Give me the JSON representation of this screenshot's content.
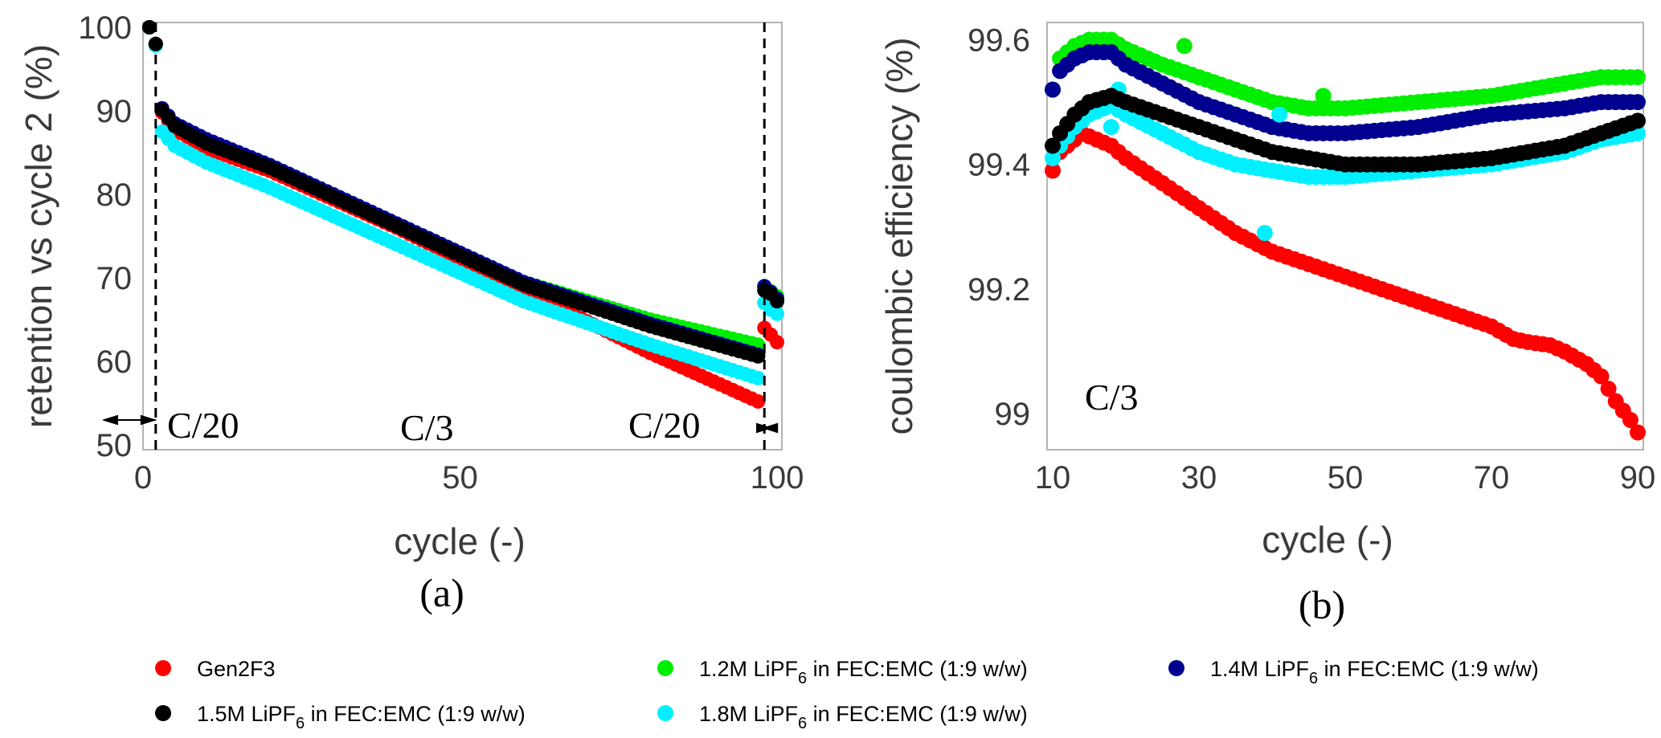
{
  "legend": {
    "series": [
      {
        "name": "Gen2F3",
        "color": "#ff0000"
      },
      {
        "name": "1.2M LiPF",
        "sub": "6",
        "suffix": " in FEC:EMC (1:9 w/w)",
        "color": "#00ee00"
      },
      {
        "name": "1.4M LiPF",
        "sub": "6",
        "suffix": " in FEC:EMC (1:9 w/w)",
        "color": "#000090"
      },
      {
        "name": "1.5M LiPF",
        "sub": "6",
        "suffix": " in FEC:EMC (1:9 w/w)",
        "color": "#000000"
      },
      {
        "name": "1.8M LiPF",
        "sub": "6",
        "suffix": " in FEC:EMC (1:9 w/w)",
        "color": "#00f0ff"
      }
    ]
  },
  "chart_data": [
    {
      "panel": "(a)",
      "type": "scatter",
      "xlabel": "cycle (-)",
      "ylabel": "retention vs cycle 2 (%)",
      "xlim": [
        0,
        100
      ],
      "ylim": [
        50,
        100
      ],
      "xticks": [
        "0",
        "50",
        "100"
      ],
      "yticks": [
        "50",
        "60",
        "70",
        "80",
        "90",
        "100"
      ],
      "phase_lines_x": [
        2,
        98
      ],
      "annotations": [
        "C/20",
        "C/3",
        "C/20"
      ],
      "series": [
        {
          "name": "Gen2F3",
          "anchors": [
            [
              1,
              100
            ],
            [
              2,
              98
            ],
            [
              3,
              89.8
            ],
            [
              5,
              87.8
            ],
            [
              10,
              85.5
            ],
            [
              20,
              82.8
            ],
            [
              40,
              76
            ],
            [
              60,
              68.6
            ],
            [
              80,
              61
            ],
            [
              97,
              55.2
            ]
          ],
          "tail": [
            [
              98,
              64
            ],
            [
              99,
              63.2
            ],
            [
              100,
              62.3
            ]
          ]
        },
        {
          "name": "1.2M LiPF6 in FEC:EMC (1:9 w/w)",
          "anchors": [
            [
              1,
              100
            ],
            [
              2,
              98
            ],
            [
              3,
              90.2
            ],
            [
              5,
              88.5
            ],
            [
              10,
              86.5
            ],
            [
              20,
              83.5
            ],
            [
              40,
              76.5
            ],
            [
              60,
              69.5
            ],
            [
              80,
              65
            ],
            [
              97,
              62
            ]
          ],
          "tail": [
            [
              98,
              69
            ],
            [
              99,
              68.4
            ],
            [
              100,
              67.8
            ]
          ]
        },
        {
          "name": "1.4M LiPF6 in FEC:EMC (1:9 w/w)",
          "anchors": [
            [
              1,
              100
            ],
            [
              2,
              98
            ],
            [
              3,
              90.3
            ],
            [
              5,
              88.5
            ],
            [
              10,
              86.6
            ],
            [
              20,
              83.5
            ],
            [
              40,
              76.5
            ],
            [
              60,
              69.5
            ],
            [
              80,
              64.5
            ],
            [
              97,
              60.8
            ]
          ],
          "tail": [
            [
              98,
              69
            ],
            [
              99,
              68.3
            ],
            [
              100,
              67.5
            ]
          ]
        },
        {
          "name": "1.5M LiPF6 in FEC:EMC (1:9 w/w)",
          "anchors": [
            [
              1,
              100
            ],
            [
              2,
              98
            ],
            [
              3,
              90.1
            ],
            [
              5,
              88.2
            ],
            [
              10,
              86.1
            ],
            [
              20,
              83.2
            ],
            [
              40,
              76.2
            ],
            [
              60,
              69.2
            ],
            [
              80,
              64.2
            ],
            [
              97,
              60.6
            ]
          ],
          "tail": [
            [
              98,
              68.5
            ],
            [
              99,
              68.1
            ],
            [
              100,
              67.2
            ]
          ]
        },
        {
          "name": "1.8M LiPF6 in FEC:EMC (1:9 w/w)",
          "anchors": [
            [
              1,
              100
            ],
            [
              2,
              97.8
            ],
            [
              3,
              87.5
            ],
            [
              5,
              85.8
            ],
            [
              10,
              83.8
            ],
            [
              20,
              80.8
            ],
            [
              40,
              74
            ],
            [
              60,
              67.2
            ],
            [
              80,
              62
            ],
            [
              97,
              58
            ]
          ],
          "tail": [
            [
              98,
              67
            ],
            [
              99,
              66.2
            ],
            [
              100,
              65.7
            ]
          ]
        }
      ]
    },
    {
      "panel": "(b)",
      "type": "scatter",
      "xlabel": "cycle (-)",
      "ylabel": "coulombic efficiency (%)",
      "xlim": [
        10,
        90
      ],
      "ylim": [
        98.95,
        99.62
      ],
      "xticks": [
        "10",
        "30",
        "50",
        "70",
        "90"
      ],
      "yticks": [
        "99",
        "99.2",
        "99.4",
        "99.6"
      ],
      "annotations": [
        "C/3"
      ],
      "series": [
        {
          "name": "Gen2F3",
          "anchors": [
            [
              10,
              99.39
            ],
            [
              11,
              99.42
            ],
            [
              12,
              99.43
            ],
            [
              14,
              99.45
            ],
            [
              16,
              99.44
            ],
            [
              18,
              99.43
            ],
            [
              20,
              99.41
            ],
            [
              25,
              99.37
            ],
            [
              30,
              99.33
            ],
            [
              35,
              99.29
            ],
            [
              40,
              99.26
            ],
            [
              45,
              99.24
            ],
            [
              50,
              99.22
            ],
            [
              55,
              99.2
            ],
            [
              60,
              99.18
            ],
            [
              65,
              99.16
            ],
            [
              70,
              99.14
            ],
            [
              73,
              99.12
            ],
            [
              75,
              99.115
            ],
            [
              78,
              99.11
            ],
            [
              80,
              99.1
            ],
            [
              83,
              99.08
            ],
            [
              85,
              99.06
            ],
            [
              87,
              99.02
            ],
            [
              89,
              98.99
            ],
            [
              90,
              98.97
            ]
          ],
          "outliers": []
        },
        {
          "name": "1.2M LiPF6 in FEC:EMC (1:9 w/w)",
          "anchors": [
            [
              10,
              99.52
            ],
            [
              11,
              99.57
            ],
            [
              13,
              99.59
            ],
            [
              15,
              99.6
            ],
            [
              18,
              99.6
            ],
            [
              20,
              99.585
            ],
            [
              25,
              99.56
            ],
            [
              30,
              99.54
            ],
            [
              35,
              99.52
            ],
            [
              40,
              99.5
            ],
            [
              45,
              99.49
            ],
            [
              50,
              99.49
            ],
            [
              60,
              99.5
            ],
            [
              70,
              99.51
            ],
            [
              80,
              99.53
            ],
            [
              85,
              99.54
            ],
            [
              90,
              99.54
            ]
          ],
          "outliers": [
            [
              28,
              99.59
            ],
            [
              47,
              99.51
            ]
          ]
        },
        {
          "name": "1.4M LiPF6 in FEC:EMC (1:9 w/w)",
          "anchors": [
            [
              10,
              99.52
            ],
            [
              11,
              99.55
            ],
            [
              13,
              99.57
            ],
            [
              15,
              99.58
            ],
            [
              18,
              99.58
            ],
            [
              20,
              99.56
            ],
            [
              25,
              99.53
            ],
            [
              30,
              99.5
            ],
            [
              35,
              99.48
            ],
            [
              40,
              99.46
            ],
            [
              45,
              99.45
            ],
            [
              50,
              99.45
            ],
            [
              60,
              99.46
            ],
            [
              70,
              99.48
            ],
            [
              80,
              99.49
            ],
            [
              85,
              99.5
            ],
            [
              90,
              99.5
            ]
          ],
          "outliers": []
        },
        {
          "name": "1.5M LiPF6 in FEC:EMC (1:9 w/w)",
          "anchors": [
            [
              10,
              99.43
            ],
            [
              11,
              99.45
            ],
            [
              13,
              99.48
            ],
            [
              15,
              99.5
            ],
            [
              18,
              99.51
            ],
            [
              20,
              99.5
            ],
            [
              25,
              99.48
            ],
            [
              30,
              99.46
            ],
            [
              35,
              99.44
            ],
            [
              40,
              99.42
            ],
            [
              45,
              99.41
            ],
            [
              50,
              99.4
            ],
            [
              60,
              99.4
            ],
            [
              70,
              99.41
            ],
            [
              80,
              99.43
            ],
            [
              85,
              99.45
            ],
            [
              90,
              99.47
            ]
          ],
          "outliers": []
        },
        {
          "name": "1.8M LiPF6 in FEC:EMC (1:9 w/w)",
          "anchors": [
            [
              10,
              99.41
            ],
            [
              11,
              99.43
            ],
            [
              13,
              99.46
            ],
            [
              15,
              99.48
            ],
            [
              18,
              99.495
            ],
            [
              20,
              99.48
            ],
            [
              25,
              99.45
            ],
            [
              30,
              99.42
            ],
            [
              35,
              99.4
            ],
            [
              40,
              99.39
            ],
            [
              45,
              99.38
            ],
            [
              50,
              99.38
            ],
            [
              60,
              99.39
            ],
            [
              70,
              99.4
            ],
            [
              80,
              99.42
            ],
            [
              85,
              99.44
            ],
            [
              90,
              99.45
            ]
          ],
          "outliers": [
            [
              19,
              99.52
            ],
            [
              18,
              99.46
            ],
            [
              39,
              99.29
            ],
            [
              41,
              99.48
            ]
          ]
        }
      ]
    }
  ]
}
